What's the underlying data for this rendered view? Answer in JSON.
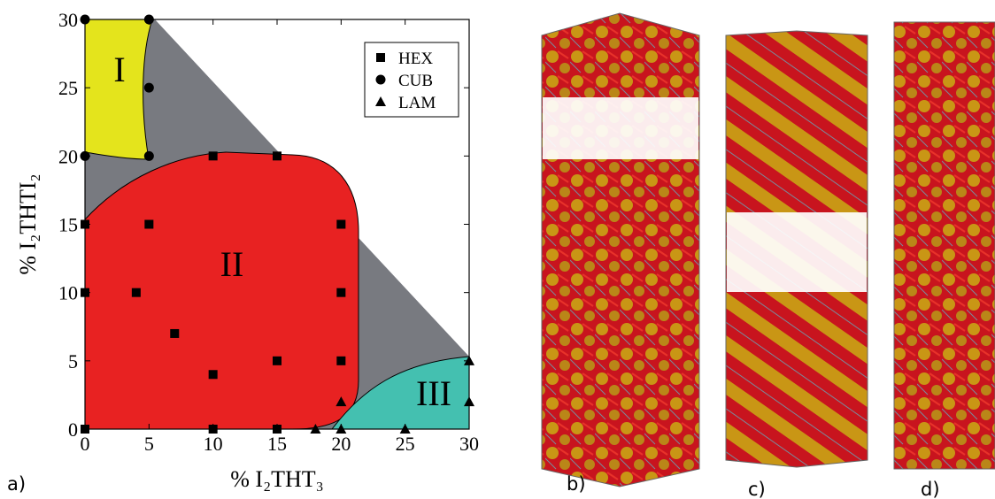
{
  "chart_data": {
    "type": "scatter",
    "x_label": "% I₂THT₃",
    "y_label": "% I₂THTI₂",
    "xlim": [
      0,
      30
    ],
    "ylim": [
      0,
      30
    ],
    "xticks": [
      0,
      5,
      10,
      15,
      20,
      25,
      30
    ],
    "yticks": [
      0,
      5,
      10,
      15,
      20,
      25,
      30
    ],
    "legend": "upper right",
    "annotations": [
      "I",
      "II",
      "III"
    ],
    "series": [
      {
        "name": "HEX",
        "marker": "square",
        "color": "#000000",
        "x": [
          0,
          0,
          0,
          4,
          5,
          7,
          10,
          10,
          15,
          15,
          20,
          20,
          20,
          10,
          15
        ],
        "values": [
          0,
          10,
          15,
          10,
          15,
          7,
          4,
          20,
          20,
          5,
          15,
          10,
          5,
          0,
          0
        ]
      },
      {
        "name": "CUB",
        "marker": "circle",
        "color": "#000000",
        "x": [
          0,
          5,
          5,
          0,
          5
        ],
        "values": [
          30,
          30,
          25,
          20,
          20
        ]
      },
      {
        "name": "LAM",
        "marker": "triangle",
        "color": "#000000",
        "x": [
          18,
          20,
          20,
          25,
          30,
          30
        ],
        "values": [
          0,
          0,
          2,
          0,
          5,
          2
        ]
      }
    ]
  },
  "figure": {
    "panel_labels": [
      "a)",
      "b)",
      "c)",
      "d)"
    ]
  }
}
